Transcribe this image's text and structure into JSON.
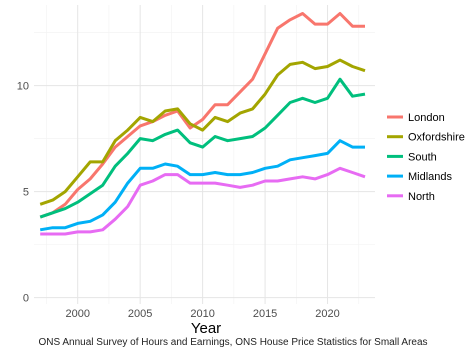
{
  "chart_data": {
    "type": "line",
    "xlabel": "Year",
    "ylabel": "",
    "xlim": [
      1996.5,
      2023.8
    ],
    "ylim": [
      -0.3,
      13.8
    ],
    "x_ticks": [
      2000,
      2005,
      2010,
      2015,
      2020
    ],
    "y_ticks": [
      0,
      5,
      10
    ],
    "grid": true,
    "legend_position": "right",
    "caption": "ONS Annual Survey of Hours and Earnings, ONS House Price Statistics for Small Areas",
    "x": [
      1997,
      1998,
      1999,
      2000,
      2001,
      2002,
      2003,
      2004,
      2005,
      2006,
      2007,
      2008,
      2009,
      2010,
      2011,
      2012,
      2013,
      2014,
      2015,
      2016,
      2017,
      2018,
      2019,
      2020,
      2021,
      2022,
      2023
    ],
    "series": [
      {
        "name": "London",
        "color": "#F8766D",
        "values": [
          3.8,
          4.0,
          4.4,
          5.1,
          5.6,
          6.3,
          7.1,
          7.6,
          8.1,
          8.3,
          8.6,
          8.8,
          8.0,
          8.4,
          9.1,
          9.1,
          9.7,
          10.3,
          11.5,
          12.7,
          13.1,
          13.4,
          12.9,
          12.9,
          13.4,
          12.8,
          12.8
        ]
      },
      {
        "name": "Oxfordshire",
        "color": "#A3A500",
        "values": [
          4.4,
          4.6,
          5.0,
          5.7,
          6.4,
          6.4,
          7.4,
          7.9,
          8.5,
          8.3,
          8.8,
          8.9,
          8.2,
          7.9,
          8.5,
          8.3,
          8.7,
          8.9,
          9.6,
          10.5,
          11.0,
          11.1,
          10.8,
          10.9,
          11.2,
          10.9,
          10.7
        ]
      },
      {
        "name": "South",
        "color": "#00BF7D",
        "values": [
          3.8,
          4.0,
          4.2,
          4.5,
          4.9,
          5.3,
          6.2,
          6.8,
          7.5,
          7.4,
          7.7,
          7.9,
          7.3,
          7.1,
          7.6,
          7.4,
          7.5,
          7.6,
          8.0,
          8.6,
          9.2,
          9.4,
          9.2,
          9.4,
          10.3,
          9.5,
          9.6
        ]
      },
      {
        "name": "Midlands",
        "color": "#00B0F6",
        "values": [
          3.2,
          3.3,
          3.3,
          3.5,
          3.6,
          3.9,
          4.5,
          5.4,
          6.1,
          6.1,
          6.3,
          6.2,
          5.8,
          5.8,
          5.9,
          5.8,
          5.8,
          5.9,
          6.1,
          6.2,
          6.5,
          6.6,
          6.7,
          6.8,
          7.4,
          7.1,
          7.1
        ]
      },
      {
        "name": "North",
        "color": "#E76BF3",
        "values": [
          3.0,
          3.0,
          3.0,
          3.1,
          3.1,
          3.2,
          3.7,
          4.3,
          5.3,
          5.5,
          5.8,
          5.8,
          5.4,
          5.4,
          5.4,
          5.3,
          5.2,
          5.3,
          5.5,
          5.5,
          5.6,
          5.7,
          5.6,
          5.8,
          6.1,
          5.9,
          5.7
        ]
      }
    ]
  }
}
